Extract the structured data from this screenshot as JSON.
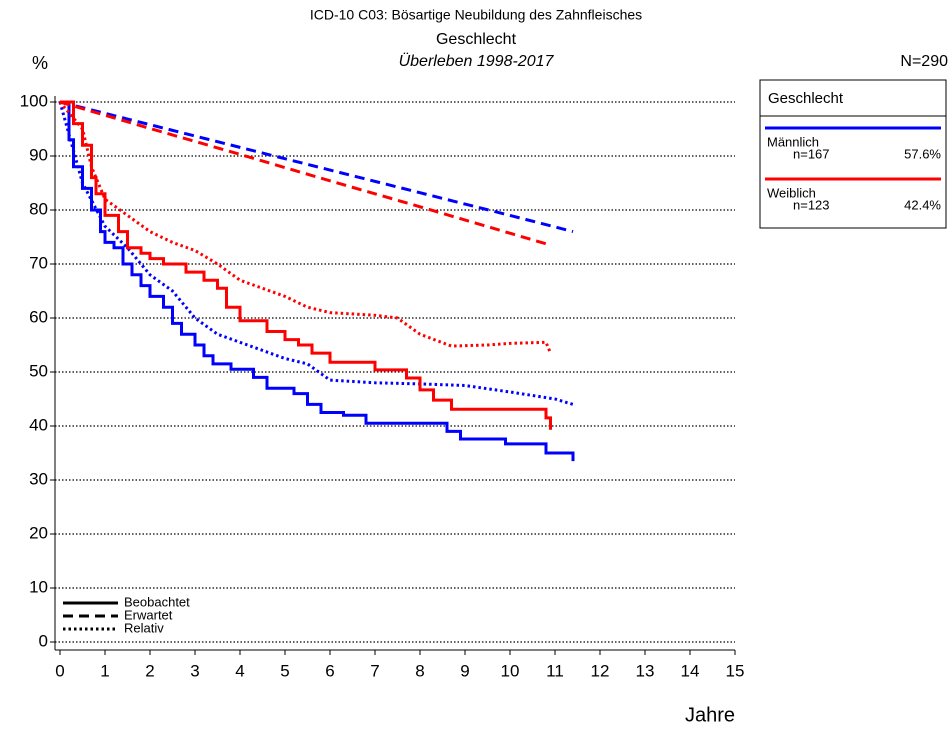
{
  "chart_data": {
    "type": "survival",
    "title": "ICD-10 C03: Bösartige Neubildung des Zahnfleisches",
    "subtitle": "Geschlecht",
    "subtitle2": "Überleben 1998-2017",
    "y_label": "%",
    "x_label": "Jahre",
    "total": "N=290",
    "legend_title": "Geschlecht",
    "xlim": [
      0,
      15
    ],
    "ylim": [
      0,
      100
    ],
    "xticks": [
      0,
      1,
      2,
      3,
      4,
      5,
      6,
      7,
      8,
      9,
      10,
      11,
      12,
      13,
      14,
      15
    ],
    "yticks": [
      0,
      10,
      20,
      30,
      40,
      50,
      60,
      70,
      80,
      90,
      100
    ],
    "grid": true,
    "line_styles": [
      {
        "name": "Beobachtet",
        "dash": "solid",
        "step": true
      },
      {
        "name": "Erwartet",
        "dash": "dashed",
        "step": false
      },
      {
        "name": "Relativ",
        "dash": "dotted",
        "step": false
      }
    ],
    "groups": [
      {
        "name": "Männlich",
        "n": "n=167",
        "share": "57.6%",
        "color": "#0000ff",
        "curves": [
          {
            "x": [
              0,
              0.2,
              0.3,
              0.5,
              0.7,
              0.9,
              1.0,
              1.2,
              1.4,
              1.6,
              1.8,
              2.0,
              2.3,
              2.5,
              2.7,
              3.0,
              3.2,
              3.4,
              3.8,
              4.3,
              4.6,
              5.2,
              5.5,
              5.8,
              6.3,
              6.8,
              8.6,
              8.9,
              9.9,
              10.8,
              11.4
            ],
            "values": [
              100,
              93,
              88,
              84,
              80,
              76,
              74,
              73,
              70,
              68,
              66,
              64,
              62,
              59,
              57,
              55,
              53,
              51.5,
              50.5,
              49,
              47,
              46,
              44,
              42.5,
              42,
              40.5,
              39,
              37.6,
              36.7,
              35,
              33.5
            ]
          },
          {
            "x": [
              0,
              2,
              4,
              6,
              8,
              10,
              11.4
            ],
            "values": [
              100,
              95.8,
              91.6,
              87.4,
              83.2,
              79,
              76
            ]
          },
          {
            "x": [
              0,
              0.5,
              1.0,
              1.5,
              2.0,
              2.5,
              3.0,
              3.5,
              4.0,
              4.5,
              5.0,
              5.5,
              6.0,
              7.0,
              8.0,
              9.0,
              10.0,
              11.0,
              11.4
            ],
            "values": [
              100,
              85,
              77,
              73,
              68,
              65,
              60,
              57,
              55.5,
              54,
              52.5,
              51.5,
              48.5,
              48,
              47.8,
              47.5,
              46.3,
              45,
              44
            ]
          }
        ]
      },
      {
        "name": "Weiblich",
        "n": "n=123",
        "share": "42.4%",
        "color": "#ff0000",
        "curves": [
          {
            "x": [
              0,
              0.3,
              0.5,
              0.7,
              0.8,
              1.0,
              1.3,
              1.5,
              1.8,
              2.0,
              2.3,
              2.8,
              3.2,
              3.5,
              3.7,
              4.0,
              4.6,
              5.0,
              5.3,
              5.6,
              6.0,
              7.0,
              7.7,
              8.0,
              8.3,
              8.7,
              10.8,
              10.9
            ],
            "values": [
              100,
              96,
              92,
              86,
              83,
              79,
              76,
              73,
              72,
              71,
              70,
              68.5,
              67,
              65.5,
              62,
              59.5,
              57.5,
              56,
              55,
              53.5,
              51.8,
              50.4,
              48.9,
              46.7,
              44.8,
              43.1,
              41.5,
              39.3
            ]
          },
          {
            "x": [
              0,
              2,
              4,
              6,
              8,
              10,
              10.9
            ],
            "values": [
              100,
              95.1,
              90.3,
              85.4,
              80.6,
              75.7,
              73.5
            ]
          },
          {
            "x": [
              0,
              0.5,
              0.7,
              1.0,
              1.5,
              2.0,
              2.5,
              3.0,
              3.5,
              4.0,
              4.5,
              5.0,
              5.5,
              6.0,
              7.0,
              7.5,
              8.0,
              8.7,
              9.5,
              10.0,
              10.8,
              10.9
            ],
            "values": [
              100,
              95,
              88,
              82,
              79,
              76,
              74,
              72.5,
              70,
              67,
              65.5,
              64,
              62,
              61,
              60.5,
              60,
              57,
              54.8,
              55,
              55.3,
              55.5,
              53.5
            ]
          }
        ]
      }
    ]
  }
}
